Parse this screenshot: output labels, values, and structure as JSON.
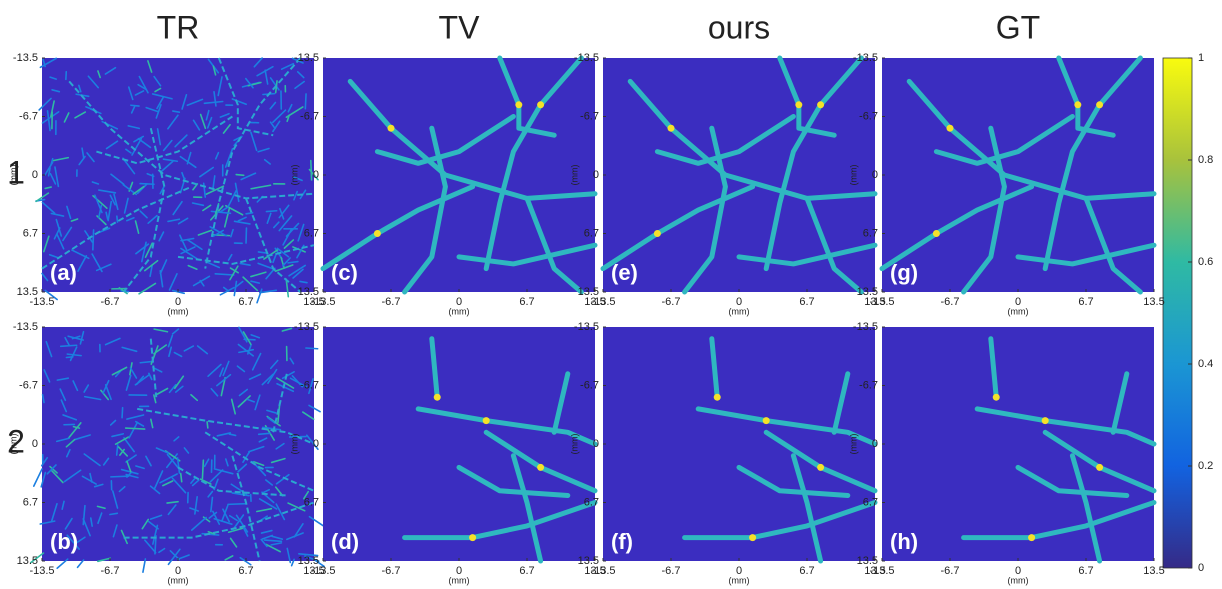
{
  "columns": [
    "TR",
    "TV",
    "ours",
    "GT"
  ],
  "rows": [
    "1",
    "2"
  ],
  "panels": [
    [
      "(a)",
      "(c)",
      "(e)",
      "(g)"
    ],
    [
      "(b)",
      "(d)",
      "(f)",
      "(h)"
    ]
  ],
  "axis_ticks": [
    -13.5,
    -6.7,
    0,
    6.7,
    13.5
  ],
  "axis_label": "(mm)",
  "colorbar_ticks": [
    0,
    0.2,
    0.4,
    0.6,
    0.8,
    1
  ]
}
